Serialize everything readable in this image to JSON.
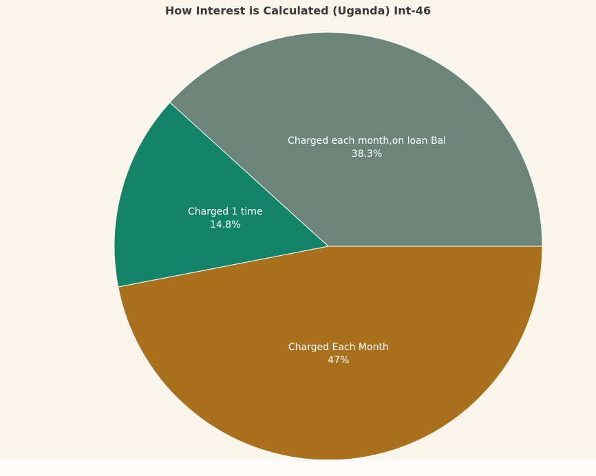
{
  "chart_data": {
    "type": "pie",
    "title": "How Interest is Calculated (Uganda) Int-46",
    "slices": [
      {
        "label": "Charged Each Month",
        "value": 47,
        "value_label": "47%",
        "color": "#a9711e"
      },
      {
        "label": "Charged 1 time",
        "value": 14.8,
        "value_label": "14.8%",
        "color": "#138467"
      },
      {
        "label": "Charged each month,on loan Bal",
        "value": 38.3,
        "value_label": "38.3%",
        "color": "#6c8479"
      }
    ],
    "start_angle_deg": 0,
    "direction": "clockwise",
    "background_color": "#f9f5eb"
  }
}
